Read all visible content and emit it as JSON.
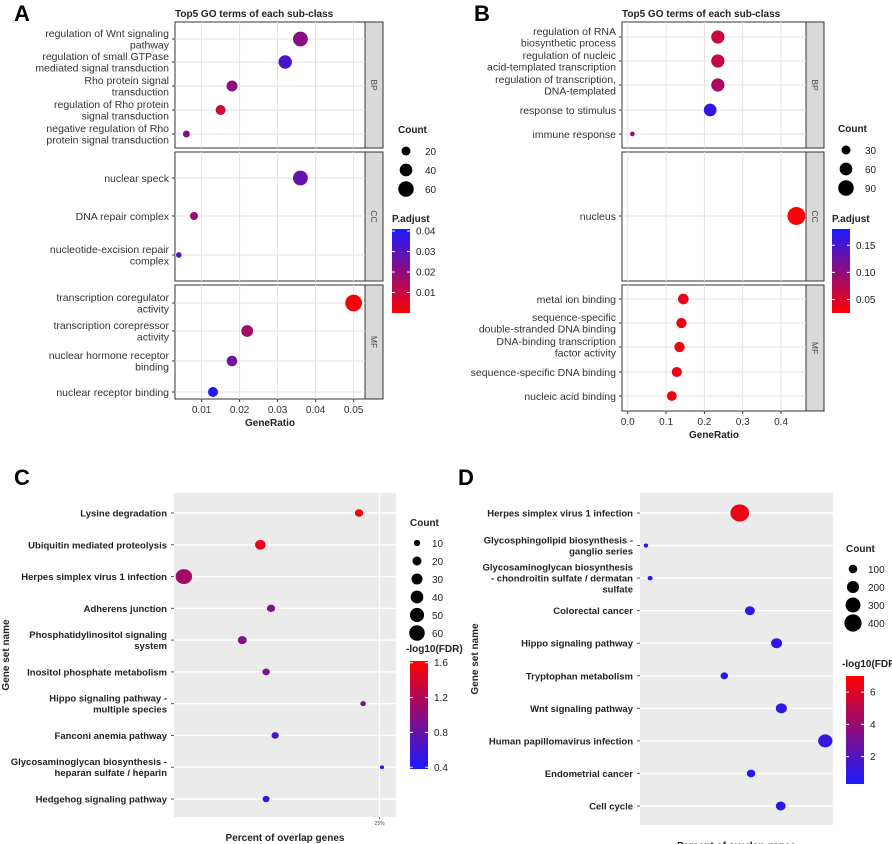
{
  "figure_labels": {
    "A": "A",
    "B": "B",
    "C": "C",
    "D": "D"
  },
  "chart_data": [
    {
      "panel": "A",
      "type": "scatter",
      "title": "Top5 GO terms of each sub-class",
      "xlabel": "GeneRatio",
      "xticks": [
        0.01,
        0.02,
        0.03,
        0.04,
        0.05
      ],
      "xtick_labels": [
        "0.01",
        "0.02",
        "0.03",
        "0.04",
        "0.05"
      ],
      "xlim": [
        0.003,
        0.053
      ],
      "groups": [
        {
          "name": "BP",
          "terms": [
            {
              "label": "regulation of Wnt signaling pathway",
              "lines": [
                "regulation of Wnt signaling",
                "pathway"
              ],
              "x": 0.036,
              "count": 55,
              "padj": 0.021
            },
            {
              "label": "regulation of small GTPase mediated signal transduction",
              "lines": [
                "regulation of small GTPase",
                "mediated signal transduction"
              ],
              "x": 0.032,
              "count": 45,
              "padj": 0.033
            },
            {
              "label": "Rho protein signal transduction",
              "lines": [
                "Rho protein signal",
                "transduction"
              ],
              "x": 0.018,
              "count": 30,
              "padj": 0.02
            },
            {
              "label": "regulation of Rho protein signal transduction",
              "lines": [
                "regulation of Rho protein",
                "signal transduction"
              ],
              "x": 0.015,
              "count": 25,
              "padj": 0.009
            },
            {
              "label": "negative regulation of Rho protein signal transduction",
              "lines": [
                "negative regulation of Rho",
                "protein signal transduction"
              ],
              "x": 0.006,
              "count": 12,
              "padj": 0.022
            }
          ]
        },
        {
          "name": "CC",
          "terms": [
            {
              "label": "nuclear speck",
              "lines": [
                "nuclear speck"
              ],
              "x": 0.036,
              "count": 55,
              "padj": 0.028
            },
            {
              "label": "DNA repair complex",
              "lines": [
                "DNA repair complex"
              ],
              "x": 0.008,
              "count": 16,
              "padj": 0.018
            },
            {
              "label": "nucleotide-excision repair complex",
              "lines": [
                "nucleotide-excision repair",
                "complex"
              ],
              "x": 0.004,
              "count": 8,
              "padj": 0.031
            }
          ]
        },
        {
          "name": "MF",
          "terms": [
            {
              "label": "transcription coregulator activity",
              "lines": [
                "transcription coregulator",
                "activity"
              ],
              "x": 0.05,
              "count": 70,
              "padj": 0.001
            },
            {
              "label": "transcription corepressor activity",
              "lines": [
                "transcription corepressor",
                "activity"
              ],
              "x": 0.022,
              "count": 35,
              "padj": 0.017
            },
            {
              "label": "nuclear hormone receptor binding",
              "lines": [
                "nuclear hormone receptor",
                "binding"
              ],
              "x": 0.018,
              "count": 28,
              "padj": 0.025
            },
            {
              "label": "nuclear receptor binding",
              "lines": [
                "nuclear receptor binding"
              ],
              "x": 0.013,
              "count": 25,
              "padj": 0.039
            }
          ]
        }
      ],
      "size_legend": {
        "title": "Count",
        "values": [
          20,
          40,
          60
        ],
        "labels": [
          "20",
          "40",
          "60"
        ]
      },
      "color_legend": {
        "title": "P.adjust",
        "min": 0.0,
        "max": 0.041,
        "ticks": [
          0.01,
          0.02,
          0.03,
          0.04
        ],
        "tick_labels": [
          "0.01",
          "0.02",
          "0.03",
          "0.04"
        ],
        "low_color": "#ff0000",
        "high_color": "#1a1aff"
      }
    },
    {
      "panel": "B",
      "type": "scatter",
      "title": "Top5 GO terms of each sub-class",
      "xlabel": "GeneRatio",
      "xticks": [
        0.0,
        0.1,
        0.2,
        0.3,
        0.4
      ],
      "xtick_labels": [
        "0.0",
        "0.1",
        "0.2",
        "0.3",
        "0.4"
      ],
      "xlim": [
        -0.015,
        0.465
      ],
      "groups": [
        {
          "name": "BP",
          "terms": [
            {
              "label": "regulation of RNA biosynthetic process",
              "lines": [
                "regulation of RNA",
                "biosynthetic process"
              ],
              "x": 0.235,
              "count": 65,
              "padj": 0.06
            },
            {
              "label": "regulation of nucleic acid-templated transcription",
              "lines": [
                "regulation of nucleic",
                "acid-templated transcription"
              ],
              "x": 0.235,
              "count": 65,
              "padj": 0.065
            },
            {
              "label": "regulation of transcription, DNA-templated",
              "lines": [
                "regulation of transcription,",
                "DNA-templated"
              ],
              "x": 0.235,
              "count": 65,
              "padj": 0.085
            },
            {
              "label": "response to stimulus",
              "lines": [
                "response to stimulus"
              ],
              "x": 0.215,
              "count": 60,
              "padj": 0.165
            },
            {
              "label": "immune response",
              "lines": [
                "immune response"
              ],
              "x": 0.012,
              "count": 8,
              "padj": 0.1
            }
          ]
        },
        {
          "name": "CC",
          "terms": [
            {
              "label": "nucleus",
              "lines": [
                "nucleus"
              ],
              "x": 0.44,
              "count": 120,
              "padj": 0.03
            }
          ]
        },
        {
          "name": "MF",
          "terms": [
            {
              "label": "metal ion binding",
              "lines": [
                "metal ion binding"
              ],
              "x": 0.145,
              "count": 42,
              "padj": 0.04
            },
            {
              "label": "sequence-specific double-stranded DNA binding",
              "lines": [
                "sequence-specific",
                "double-stranded DNA binding"
              ],
              "x": 0.14,
              "count": 40,
              "padj": 0.035
            },
            {
              "label": "DNA-binding transcription factor activity",
              "lines": [
                "DNA-binding transcription",
                "factor activity"
              ],
              "x": 0.135,
              "count": 40,
              "padj": 0.035
            },
            {
              "label": "sequence-specific DNA binding",
              "lines": [
                "sequence-specific DNA binding"
              ],
              "x": 0.128,
              "count": 38,
              "padj": 0.035
            },
            {
              "label": "nucleic acid binding",
              "lines": [
                "nucleic acid binding"
              ],
              "x": 0.115,
              "count": 36,
              "padj": 0.035
            }
          ]
        }
      ],
      "size_legend": {
        "title": "Count",
        "values": [
          30,
          60,
          90
        ],
        "labels": [
          "30",
          "60",
          "90"
        ]
      },
      "color_legend": {
        "title": "P.adjust",
        "min": 0.025,
        "max": 0.18,
        "ticks": [
          0.05,
          0.1,
          0.15
        ],
        "tick_labels": [
          "0.05",
          "0.10",
          "0.15"
        ],
        "low_color": "#ff0000",
        "high_color": "#1a1aff"
      }
    },
    {
      "panel": "C",
      "type": "scatter",
      "xlabel": "Percent of overlap genes",
      "ylabel": "Gene set name",
      "xtick_labels": [
        "25%"
      ],
      "xlim": [
        0.0,
        0.27
      ],
      "points": [
        {
          "label": "Lysine degradation",
          "lines": [
            "Lysine degradation"
          ],
          "x": 0.225,
          "count": 16,
          "fdr": 1.55
        },
        {
          "label": "Ubiquitin mediated proteolysis",
          "lines": [
            "Ubiquitin mediated proteolysis"
          ],
          "x": 0.105,
          "count": 26,
          "fdr": 1.5
        },
        {
          "label": "Herpes simplex virus 1 infection",
          "lines": [
            "Herpes simplex virus 1 infection"
          ],
          "x": 0.012,
          "count": 62,
          "fdr": 1.12
        },
        {
          "label": "Adherens junction",
          "lines": [
            "Adherens junction"
          ],
          "x": 0.118,
          "count": 15,
          "fdr": 0.95
        },
        {
          "label": "Phosphatidylinositol signaling system",
          "lines": [
            "Phosphatidylinositol signaling",
            "system"
          ],
          "x": 0.083,
          "count": 18,
          "fdr": 0.95
        },
        {
          "label": "Inositol phosphate metabolism",
          "lines": [
            "Inositol phosphate metabolism"
          ],
          "x": 0.112,
          "count": 13,
          "fdr": 0.92
        },
        {
          "label": "Hippo signaling pathway - multiple species",
          "lines": [
            "Hippo signaling pathway -",
            "multiple species"
          ],
          "x": 0.23,
          "count": 7,
          "fdr": 0.86
        },
        {
          "label": "Fanconi anemia pathway",
          "lines": [
            "Fanconi anemia pathway"
          ],
          "x": 0.123,
          "count": 12,
          "fdr": 0.64
        },
        {
          "label": "Glycosaminoglycan biosynthesis - heparan sulfate / heparin",
          "lines": [
            "Glycosaminoglycan biosynthesis -",
            "heparan sulfate / heparin"
          ],
          "x": 0.253,
          "count": 4,
          "fdr": 0.52
        },
        {
          "label": "Hedgehog signaling pathway",
          "lines": [
            "Hedgehog signaling pathway"
          ],
          "x": 0.112,
          "count": 11,
          "fdr": 0.44
        }
      ],
      "size_legend": {
        "title": "Count",
        "values": [
          10,
          20,
          30,
          40,
          50,
          60
        ],
        "labels": [
          "10",
          "20",
          "30",
          "40",
          "50",
          "60"
        ]
      },
      "color_legend": {
        "title": "-log10(FDR)",
        "min": 0.38,
        "max": 1.62,
        "ticks": [
          0.4,
          0.8,
          1.2,
          1.6
        ],
        "tick_labels": [
          "0.4",
          "0.8",
          "1.2",
          "1.6"
        ],
        "low_color": "#1a1aff",
        "high_color": "#ff0000"
      }
    },
    {
      "panel": "D",
      "type": "scatter",
      "xlabel": "Percent of overlap genes",
      "ylabel": "Gene set name",
      "xlim": [
        0.0,
        0.325
      ],
      "points": [
        {
          "label": "Herpes simplex virus 1 infection",
          "lines": [
            "Herpes simplex virus 1 infection"
          ],
          "x": 0.168,
          "count": 430,
          "fdr": 6.5
        },
        {
          "label": "Glycosphingolipid biosynthesis - ganglio series",
          "lines": [
            "Glycosphingolipid biosynthesis -",
            "ganglio series"
          ],
          "x": 0.01,
          "count": 25,
          "fdr": 0.6
        },
        {
          "label": "Glycosaminoglycan biosynthesis - chondroitin sulfate / dermatan sulfate",
          "lines": [
            "Glycosaminoglycan biosynthesis",
            "- chondroitin sulfate / dermatan",
            "sulfate"
          ],
          "x": 0.017,
          "count": 30,
          "fdr": 0.6
        },
        {
          "label": "Colorectal cancer",
          "lines": [
            "Colorectal cancer"
          ],
          "x": 0.185,
          "count": 120,
          "fdr": 0.8
        },
        {
          "label": "Hippo signaling pathway",
          "lines": [
            "Hippo signaling pathway"
          ],
          "x": 0.23,
          "count": 150,
          "fdr": 0.9
        },
        {
          "label": "Tryptophan metabolism",
          "lines": [
            "Tryptophan metabolism"
          ],
          "x": 0.142,
          "count": 70,
          "fdr": 0.6
        },
        {
          "label": "Wnt signaling pathway",
          "lines": [
            "Wnt signaling pathway"
          ],
          "x": 0.238,
          "count": 150,
          "fdr": 0.9
        },
        {
          "label": "Human papillomavirus infection",
          "lines": [
            "Human papillomavirus infection"
          ],
          "x": 0.312,
          "count": 250,
          "fdr": 1.2
        },
        {
          "label": "Endometrial cancer",
          "lines": [
            "Endometrial cancer"
          ],
          "x": 0.187,
          "count": 90,
          "fdr": 0.7
        },
        {
          "label": "Cell cycle",
          "lines": [
            "Cell cycle"
          ],
          "x": 0.237,
          "count": 120,
          "fdr": 0.8
        }
      ],
      "size_legend": {
        "title": "Count",
        "values": [
          100,
          200,
          300,
          400
        ],
        "labels": [
          "100",
          "200",
          "300",
          "400"
        ]
      },
      "color_legend": {
        "title": "-log10(FDR)",
        "min": 0.3,
        "max": 7.0,
        "ticks": [
          2,
          4,
          6
        ],
        "tick_labels": [
          "2",
          "4",
          "6"
        ],
        "low_color": "#1a1aff",
        "high_color": "#ff0000"
      }
    }
  ]
}
